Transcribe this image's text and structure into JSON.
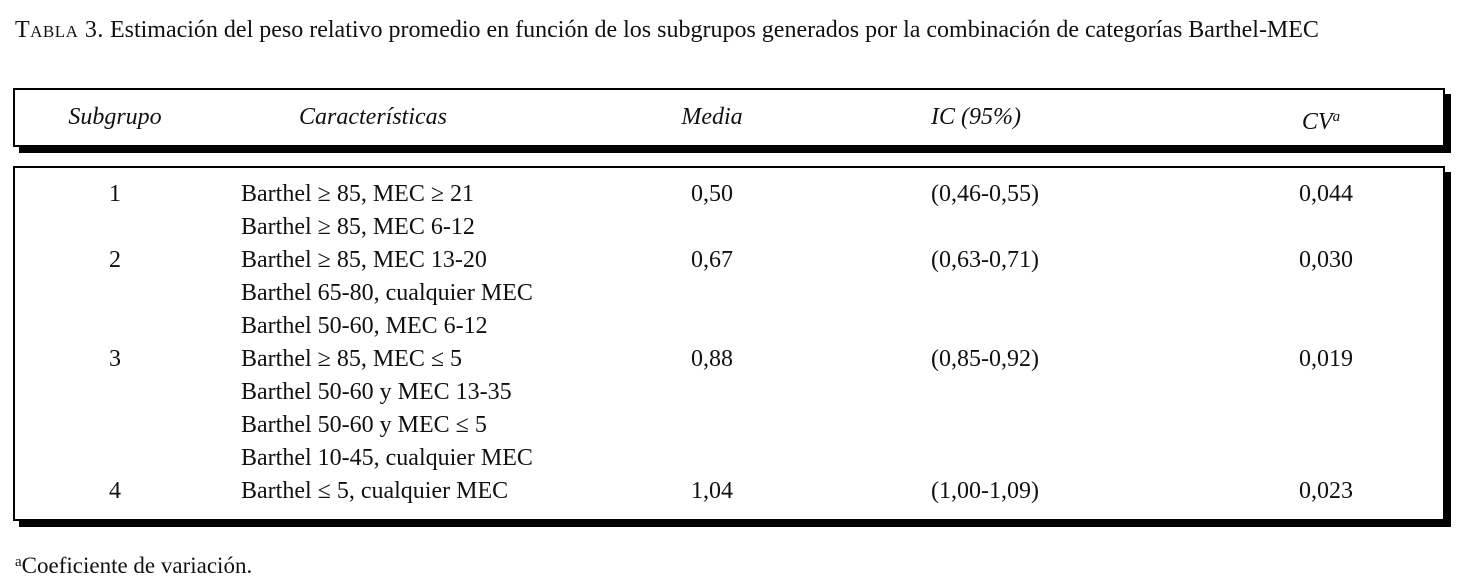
{
  "caption": {
    "label": "Tabla 3.",
    "text": "Estimación del peso relativo promedio en función de los subgrupos generados por la combinación de categorías Barthel-MEC"
  },
  "header": {
    "subgrupo": "Subgrupo",
    "caracteristicas": "Características",
    "media": "Media",
    "ic": "IC (95%)",
    "cv": "CV",
    "cv_sup": "a"
  },
  "rows": [
    {
      "subgrupo": "1",
      "caracteristicas": [
        "Barthel ≥ 85, MEC ≥ 21"
      ],
      "media": "0,50",
      "ic": "(0,46-0,55)",
      "cv": "0,044"
    },
    {
      "subgrupo": "2",
      "caracteristicas": [
        "Barthel ≥ 85, MEC 6-12",
        "Barthel ≥ 85, MEC 13-20",
        "Barthel 65-80, cualquier MEC"
      ],
      "media": "0,67",
      "ic": "(0,63-0,71)",
      "cv": "0,030"
    },
    {
      "subgrupo": "3",
      "caracteristicas": [
        "Barthel 50-60, MEC 6-12",
        "Barthel ≥ 85, MEC ≤ 5",
        "Barthel 50-60 y MEC 13-35"
      ],
      "media": "0,88",
      "ic": "(0,85-0,92)",
      "cv": "0,019"
    },
    {
      "subgrupo": "4",
      "caracteristicas": [
        "Barthel 50-60 y MEC ≤ 5",
        "Barthel 10-45, cualquier MEC",
        "Barthel ≤ 5, cualquier MEC"
      ],
      "media": "1,04",
      "ic": "(1,00-1,09)",
      "cv": "0,023"
    }
  ],
  "footnote": {
    "marker": "a",
    "text": "Coeficiente de variación."
  }
}
